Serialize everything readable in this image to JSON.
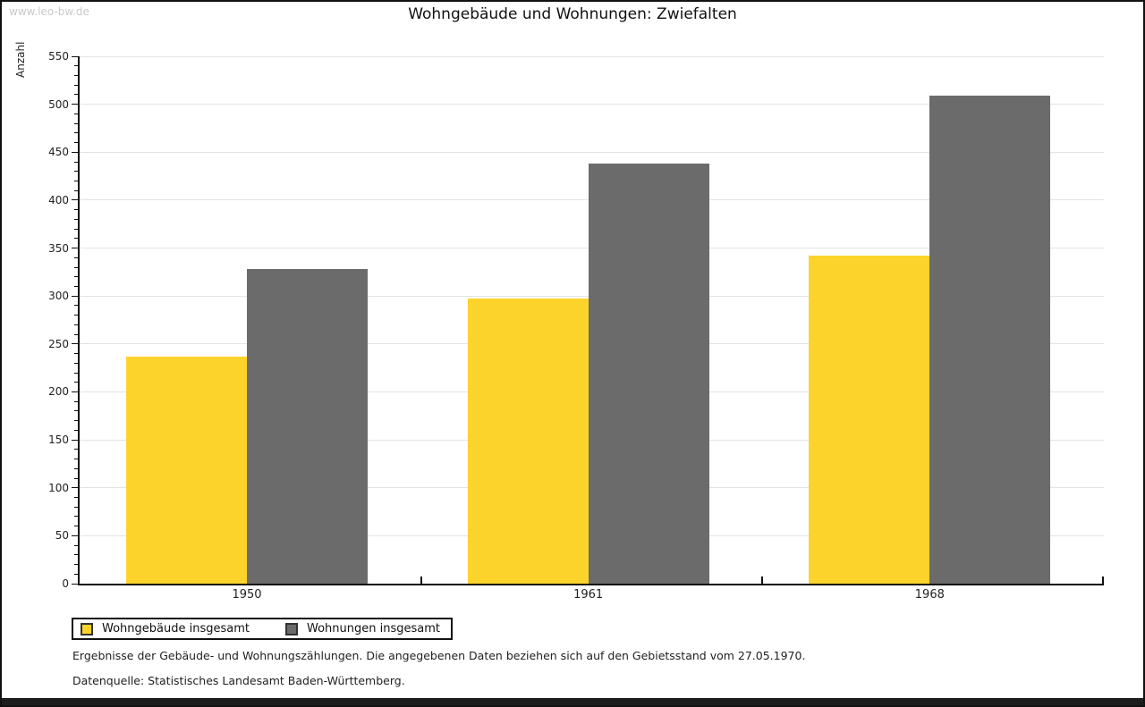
{
  "watermark": "www.leo-bw.de",
  "chart_data": {
    "type": "bar",
    "title": "Wohngebäude und Wohnungen: Zwiefalten",
    "xlabel": "",
    "ylabel": "Anzahl",
    "categories": [
      "1950",
      "1961",
      "1968"
    ],
    "series": [
      {
        "name": "Wohngebäude insgesamt",
        "color": "#FCD32B",
        "values": [
          237,
          297,
          342
        ]
      },
      {
        "name": "Wohnungen insgesamt",
        "color": "#6B6B6B",
        "values": [
          328,
          438,
          509
        ]
      }
    ],
    "ylim": [
      0,
      550
    ],
    "ytick_step": 50,
    "minor_tick_step": 10,
    "grid": true,
    "legend_position": "bottom-left"
  },
  "footnotes": {
    "line1": "Ergebnisse der Gebäude- und Wohnungszählungen. Die angegebenen Daten beziehen sich auf den Gebietsstand vom 27.05.1970.",
    "line2": "Datenquelle: Statistisches Landesamt Baden-Württemberg."
  }
}
